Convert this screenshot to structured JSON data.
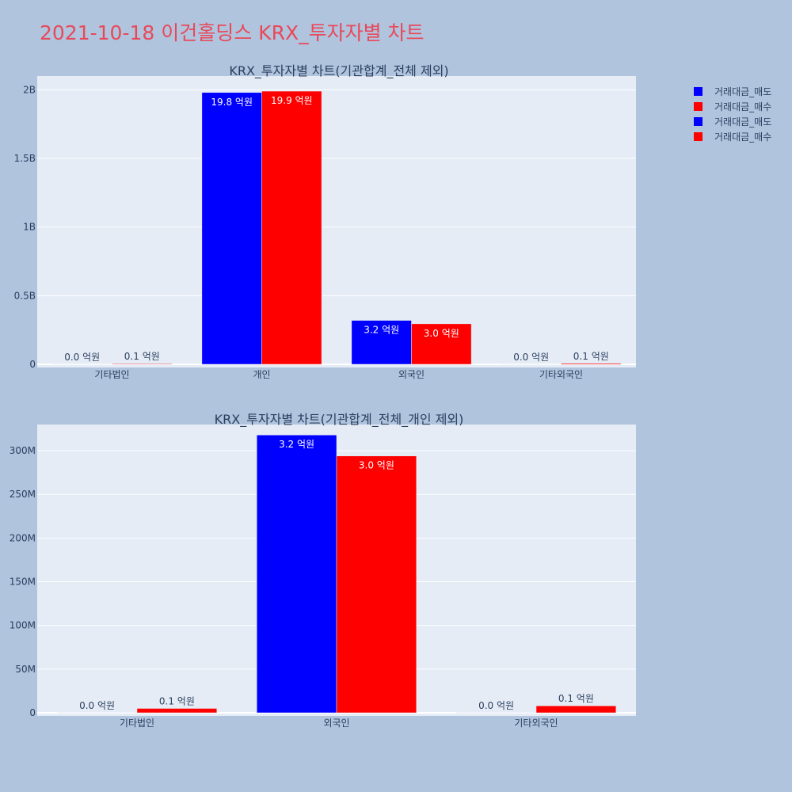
{
  "title": "2021-10-18 이건홀딩스 KRX_투자자별 차트",
  "colors": {
    "sell": "#0000ff",
    "buy": "#ff0000",
    "plot_bg": "#e5ecf6",
    "page_bg": "#b0c4de",
    "title": "#e8495a",
    "text": "#2a3f5f"
  },
  "legend": [
    {
      "label": "거래대금_매도",
      "color": "#0000ff"
    },
    {
      "label": "거래대금_매수",
      "color": "#ff0000"
    },
    {
      "label": "거래대금_매도",
      "color": "#0000ff"
    },
    {
      "label": "거래대금_매수",
      "color": "#ff0000"
    }
  ],
  "chart_data": [
    {
      "type": "bar",
      "title": "KRX_투자자별 차트(기관합계_전체 제외)",
      "categories": [
        "기타법인",
        "개인",
        "외국인",
        "기타외국인"
      ],
      "ylim": [
        0,
        2100000000
      ],
      "yticks": [
        0,
        500000000,
        1000000000,
        1500000000,
        2000000000
      ],
      "yticklabels": [
        "0",
        "0.5B",
        "1B",
        "1.5B",
        "2B"
      ],
      "grid": true,
      "series": [
        {
          "name": "거래대금_매도",
          "color": "#0000ff",
          "values": [
            200000,
            1980000000,
            320000000,
            100000
          ],
          "labels": [
            "0.0 억원",
            "19.8 억원",
            "3.2 억원",
            "0.0 억원"
          ]
        },
        {
          "name": "거래대금_매수",
          "color": "#ff0000",
          "values": [
            5000000,
            1990000000,
            295000000,
            7000000
          ],
          "labels": [
            "0.1 억원",
            "19.9 억원",
            "3.0 억원",
            "0.1 억원"
          ]
        }
      ]
    },
    {
      "type": "bar",
      "title": "KRX_투자자별 차트(기관합계_전체_개인 제외)",
      "categories": [
        "기타법인",
        "외국인",
        "기타외국인"
      ],
      "ylim": [
        0,
        330000000
      ],
      "yticks": [
        0,
        50000000,
        100000000,
        150000000,
        200000000,
        250000000,
        300000000
      ],
      "yticklabels": [
        "0",
        "50M",
        "100M",
        "150M",
        "200M",
        "250M",
        "300M"
      ],
      "grid": true,
      "series": [
        {
          "name": "거래대금_매도",
          "color": "#0000ff",
          "values": [
            200000,
            318000000,
            100000
          ],
          "labels": [
            "0.0 억원",
            "3.2 억원",
            "0.0 억원"
          ]
        },
        {
          "name": "거래대금_매수",
          "color": "#ff0000",
          "values": [
            5000000,
            294000000,
            8000000
          ],
          "labels": [
            "0.1 억원",
            "3.0 억원",
            "0.1 억원"
          ]
        }
      ]
    }
  ]
}
